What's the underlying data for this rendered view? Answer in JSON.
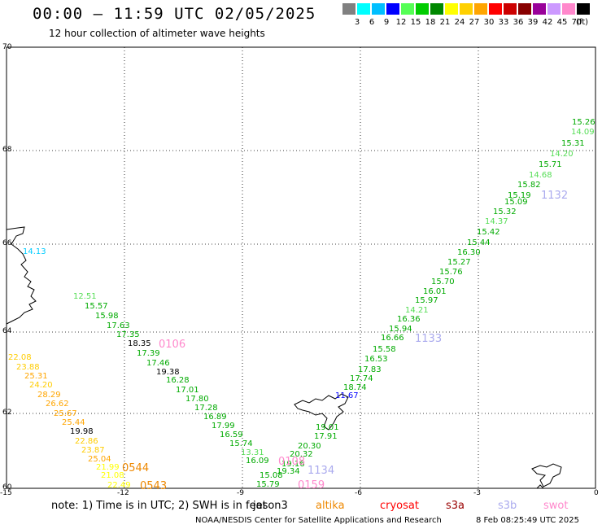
{
  "header": {
    "title": "00:00 – 11:59 UTC 02/05/2025",
    "subtitle": "12 hour collection of altimeter wave heights"
  },
  "colorbar": {
    "units": "(ft)",
    "colors": [
      "#808080",
      "#00ffff",
      "#00bfff",
      "#0000ff",
      "#55ff55",
      "#00cc00",
      "#008800",
      "#ffff00",
      "#ffd000",
      "#ffa500",
      "#ff0000",
      "#cc0000",
      "#880000",
      "#990099",
      "#cc99ff",
      "#ff88cc",
      "#000000"
    ],
    "labels": [
      "3",
      "6",
      "9",
      "12",
      "15",
      "18",
      "21",
      "24",
      "27",
      "30",
      "33",
      "36",
      "39",
      "42",
      "45",
      "70"
    ]
  },
  "axes": {
    "lat_labels": [
      "70",
      "68",
      "66",
      "64",
      "62",
      "60"
    ],
    "lon_labels": [
      "-15",
      "-12",
      "-9",
      "-6",
      "-3",
      "0"
    ]
  },
  "track_west": [
    {
      "t": "14.13",
      "c": "#00ccff"
    },
    {
      "t": "12.51",
      "c": "#55dd55"
    },
    {
      "t": "15.57",
      "c": "#00aa00"
    },
    {
      "t": "15.98",
      "c": "#00aa00"
    },
    {
      "t": "17.63",
      "c": "#00aa00"
    },
    {
      "t": "17.35",
      "c": "#00aa00"
    },
    {
      "t": "18.35",
      "c": "#000000"
    },
    {
      "t": "17.39",
      "c": "#00aa00"
    },
    {
      "t": "17.46",
      "c": "#00aa00"
    },
    {
      "t": "19.38",
      "c": "#000000"
    },
    {
      "t": "16.28",
      "c": "#00aa00"
    },
    {
      "t": "17.01",
      "c": "#00aa00"
    },
    {
      "t": "17.80",
      "c": "#00aa00"
    },
    {
      "t": "17.28",
      "c": "#00aa00"
    },
    {
      "t": "16.89",
      "c": "#00aa00"
    },
    {
      "t": "17.99",
      "c": "#00aa00"
    },
    {
      "t": "16.59",
      "c": "#00aa00"
    },
    {
      "t": "15.74",
      "c": "#00aa00"
    },
    {
      "t": "13.31",
      "c": "#55dd55"
    },
    {
      "t": "16.09",
      "c": "#00aa00"
    },
    {
      "t": "15.08",
      "c": "#00aa00"
    },
    {
      "t": "15.79",
      "c": "#00aa00"
    }
  ],
  "track_east": [
    {
      "t": "15.26",
      "c": "#00aa00"
    },
    {
      "t": "14.09",
      "c": "#55dd55"
    },
    {
      "t": "15.31",
      "c": "#00aa00"
    },
    {
      "t": "14.20",
      "c": "#55dd55"
    },
    {
      "t": "15.71",
      "c": "#00aa00"
    },
    {
      "t": "14.68",
      "c": "#55dd55"
    },
    {
      "t": "15.82",
      "c": "#00aa00"
    },
    {
      "t": "15.19",
      "c": "#00aa00"
    },
    {
      "t": "15.09",
      "c": "#00aa00"
    },
    {
      "t": "15.32",
      "c": "#00aa00"
    },
    {
      "t": "14.37",
      "c": "#55dd55"
    },
    {
      "t": "15.42",
      "c": "#00aa00"
    },
    {
      "t": "15.44",
      "c": "#00aa00"
    },
    {
      "t": "16.30",
      "c": "#00aa00"
    },
    {
      "t": "15.27",
      "c": "#00aa00"
    },
    {
      "t": "15.76",
      "c": "#00aa00"
    },
    {
      "t": "15.70",
      "c": "#00aa00"
    },
    {
      "t": "16.01",
      "c": "#00aa00"
    },
    {
      "t": "15.97",
      "c": "#00aa00"
    },
    {
      "t": "14.21",
      "c": "#55dd55"
    },
    {
      "t": "16.36",
      "c": "#00aa00"
    },
    {
      "t": "15.94",
      "c": "#00aa00"
    },
    {
      "t": "16.66",
      "c": "#00aa00"
    },
    {
      "t": "15.58",
      "c": "#00aa00"
    },
    {
      "t": "16.53",
      "c": "#00aa00"
    },
    {
      "t": "17.83",
      "c": "#00aa00"
    },
    {
      "t": "17.74",
      "c": "#00aa00"
    },
    {
      "t": "18.74",
      "c": "#00aa00"
    },
    {
      "t": "11.67",
      "c": "#0000ff"
    },
    {
      "t": "19.01",
      "c": "#00aa00"
    },
    {
      "t": "17.91",
      "c": "#00aa00"
    },
    {
      "t": "20.30",
      "c": "#00aa00"
    },
    {
      "t": "20.32",
      "c": "#00aa00"
    },
    {
      "t": "19.16",
      "c": "#00aa00"
    },
    {
      "t": "19.34",
      "c": "#00aa00"
    }
  ],
  "track_south": [
    {
      "t": "22.08",
      "c": "#ffcc00"
    },
    {
      "t": "23.88",
      "c": "#ffcc00"
    },
    {
      "t": "25.31",
      "c": "#ffa500"
    },
    {
      "t": "24.20",
      "c": "#ffcc00"
    },
    {
      "t": "28.29",
      "c": "#ffa500"
    },
    {
      "t": "26.62",
      "c": "#ffa500"
    },
    {
      "t": "25.67",
      "c": "#ffa500"
    },
    {
      "t": "25.44",
      "c": "#ffa500"
    },
    {
      "t": "19.98",
      "c": "#000000"
    },
    {
      "t": "22.86",
      "c": "#ffcc00"
    },
    {
      "t": "23.87",
      "c": "#ffcc00"
    },
    {
      "t": "25.04",
      "c": "#ffa500"
    },
    {
      "t": "21.99",
      "c": "#ffff00"
    },
    {
      "t": "21.08",
      "c": "#ffff00"
    },
    {
      "t": "22.49",
      "c": "#ffff00"
    }
  ],
  "pass_times": [
    {
      "t": "1132",
      "c": "#aaaaee"
    },
    {
      "t": "1133",
      "c": "#aaaaee"
    },
    {
      "t": "0106",
      "c": "#ff88cc"
    },
    {
      "t": "0544",
      "c": "#ee8800"
    },
    {
      "t": "0543",
      "c": "#ee8800"
    },
    {
      "t": "1134",
      "c": "#aaaaee"
    },
    {
      "t": "0108",
      "c": "#ff88cc"
    },
    {
      "t": "0159",
      "c": "#ff88cc"
    }
  ],
  "footer": {
    "note": "note:  1) Time is in UTC; 2) SWH is in feet",
    "satellites": [
      {
        "t": "jason3",
        "c": "#000000"
      },
      {
        "t": "altika",
        "c": "#ee8800"
      },
      {
        "t": "cryosat",
        "c": "#ff0000"
      },
      {
        "t": "s3a",
        "c": "#990000"
      },
      {
        "t": "s3b",
        "c": "#aaaaee"
      },
      {
        "t": "swot",
        "c": "#ff88cc"
      }
    ],
    "credit": "NOAA/NESDIS Center for Satellite Applications and Research",
    "timestamp": "8 Feb 08:25:49 UTC 2025"
  }
}
